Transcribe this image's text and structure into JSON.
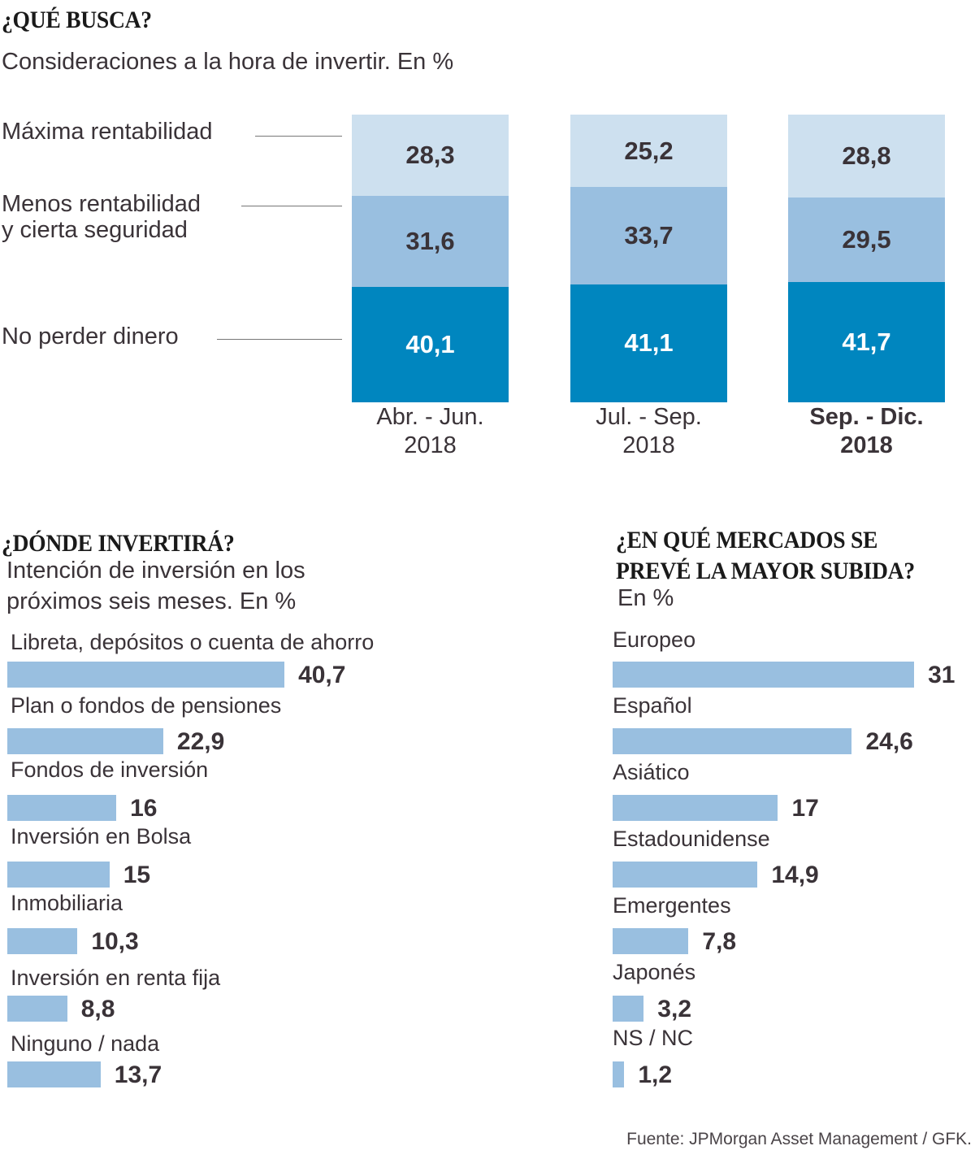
{
  "source": "Fuente: JPMorgan Asset Management / GFK.",
  "chart_data": [
    {
      "type": "bar",
      "stacked": true,
      "title": "¿QUÉ BUSCA?",
      "subtitle": "Consideraciones a la hora de invertir. En %",
      "categories": [
        {
          "line1": "Abr. - Jun.",
          "line2": "2018",
          "highlight": false
        },
        {
          "line1": "Jul. - Sep.",
          "line2": "2018",
          "highlight": false
        },
        {
          "line1": "Sep. - Dic.",
          "line2": "2018",
          "highlight": true
        }
      ],
      "series": [
        {
          "name": "No perder dinero",
          "name_lines": [
            "No perder dinero"
          ],
          "color": "#0086bf",
          "text_color": "#ffffff",
          "values": [
            40.1,
            41.1,
            41.7
          ],
          "labels": [
            "40,1",
            "41,1",
            "41,7"
          ]
        },
        {
          "name": "Menos rentabilidad y cierta seguridad",
          "name_lines": [
            "Menos rentabilidad",
            "y cierta seguridad"
          ],
          "color": "#99bfe0",
          "text_color": "#3a3338",
          "values": [
            31.6,
            33.7,
            29.5
          ],
          "labels": [
            "31,6",
            "33,7",
            "29,5"
          ]
        },
        {
          "name": "Máxima rentabilidad",
          "name_lines": [
            "Máxima rentabilidad"
          ],
          "color": "#cde0ef",
          "text_color": "#3a3338",
          "values": [
            28.3,
            25.2,
            28.8
          ],
          "labels": [
            "28,3",
            "25,2",
            "28,8"
          ]
        }
      ],
      "ylim": [
        0,
        100
      ],
      "grid": false
    },
    {
      "type": "bar",
      "orientation": "horizontal",
      "title": "¿DÓNDE INVERTIRÁ?",
      "subtitle_lines": [
        "Intención de inversión en los",
        "próximos seis meses. En %"
      ],
      "color": "#99bfe0",
      "categories": [
        "Libreta, depósitos o cuenta de ahorro",
        "Plan o fondos de pensiones",
        "Fondos de inversión",
        "Inversión en Bolsa",
        "Inmobiliaria",
        "Inversión en renta fija",
        "Ninguno / nada"
      ],
      "values": [
        40.7,
        22.9,
        16,
        15,
        10.3,
        8.8,
        13.7
      ],
      "labels": [
        "40,7",
        "22,9",
        "16",
        "15",
        "10,3",
        "8,8",
        "13,7"
      ],
      "grid": false
    },
    {
      "type": "bar",
      "orientation": "horizontal",
      "title_lines": [
        "¿EN QUÉ MERCADOS SE",
        "PREVÉ LA MAYOR SUBIDA?"
      ],
      "subtitle": "En %",
      "color": "#99bfe0",
      "categories": [
        "Europeo",
        "Español",
        "Asiático",
        "Estadounidense",
        "Emergentes",
        "Japonés",
        "NS / NC"
      ],
      "values": [
        31,
        24.6,
        17,
        14.9,
        7.8,
        3.2,
        1.2
      ],
      "labels": [
        "31",
        "24,6",
        "17",
        "14,9",
        "7,8",
        "3,2",
        "1,2"
      ],
      "grid": false
    }
  ]
}
